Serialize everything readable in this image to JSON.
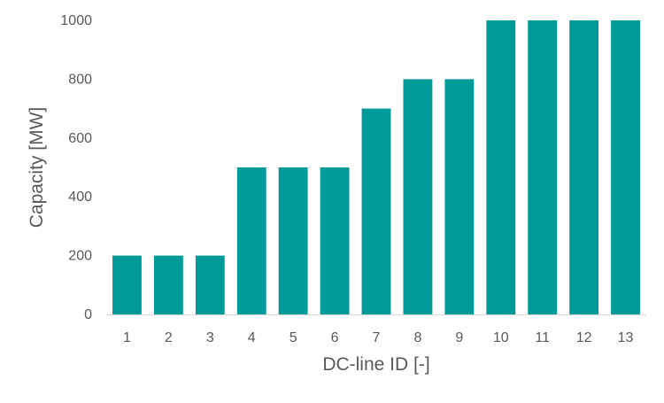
{
  "chart_data": {
    "type": "bar",
    "title": "",
    "xlabel": "DC-line ID [-]",
    "ylabel": "Capacity [MW]",
    "categories": [
      "1",
      "2",
      "3",
      "4",
      "5",
      "6",
      "7",
      "8",
      "9",
      "10",
      "11",
      "12",
      "13"
    ],
    "values": [
      200,
      200,
      200,
      500,
      500,
      500,
      700,
      800,
      800,
      1000,
      1000,
      1000,
      1000
    ],
    "ylim": [
      0,
      1000
    ],
    "yticks": [
      0,
      200,
      400,
      600,
      800,
      1000
    ],
    "grid": false,
    "legend": "none",
    "bar_color": "#009B98",
    "axis_color": "#D9D9D9",
    "text_color": "#595959"
  }
}
